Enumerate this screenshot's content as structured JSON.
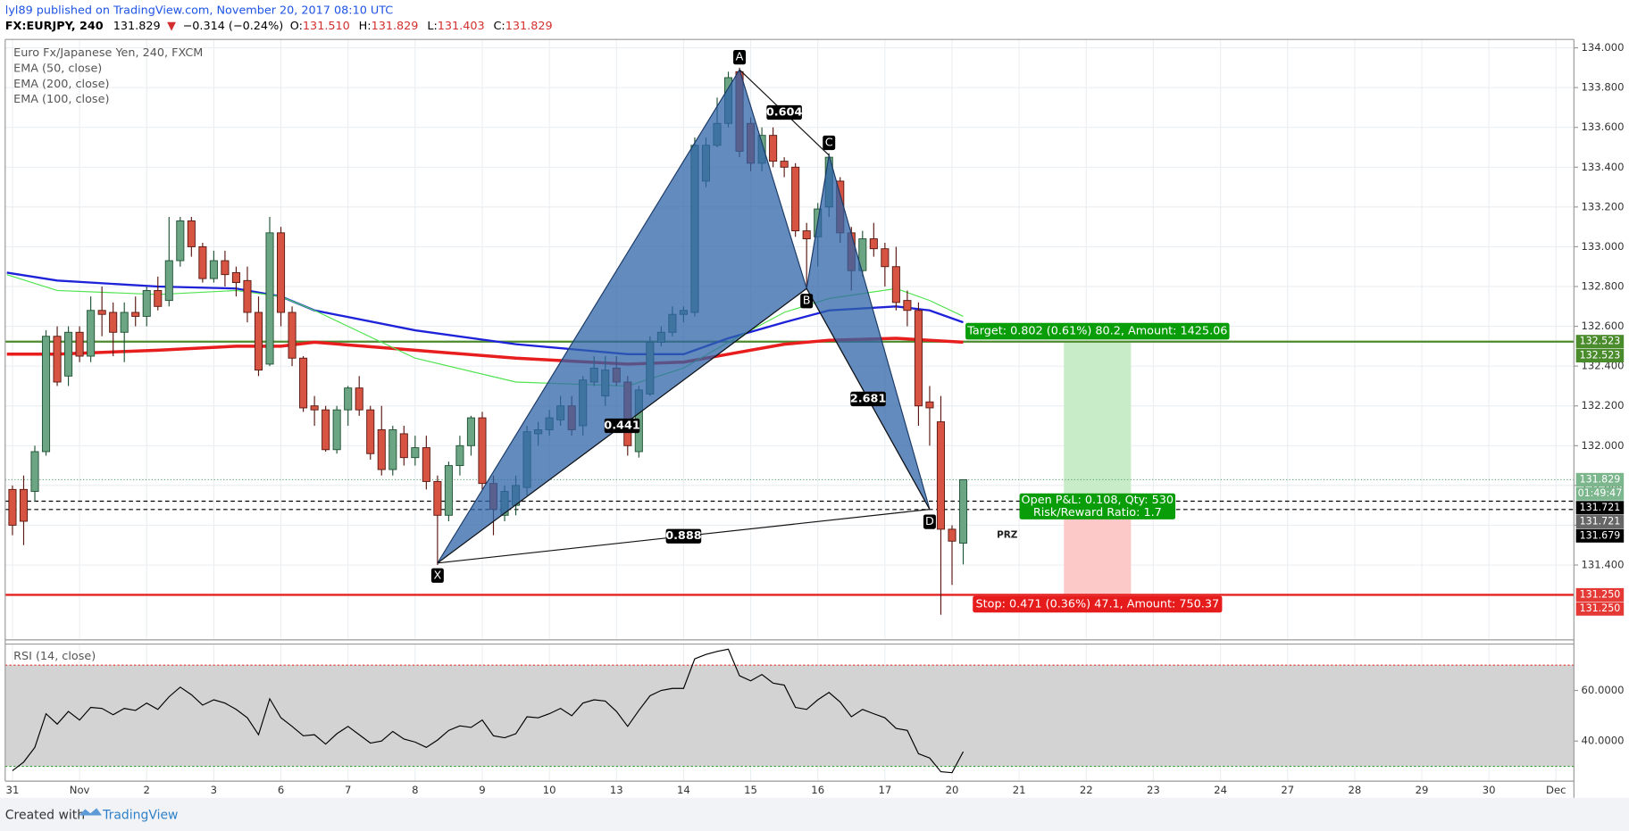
{
  "header": {
    "published": "lyl89 published on TradingView.com, November 20, 2017 08:10 UTC",
    "symbol": "FX:EURJPY, 240",
    "last": "131.829",
    "arrow": "▼",
    "change": "−0.314 (−0.24%)",
    "ohlc": [
      {
        "label": "O:",
        "value": "131.510"
      },
      {
        "label": "H:",
        "value": "131.829"
      },
      {
        "label": "L:",
        "value": "131.403"
      },
      {
        "label": "C:",
        "value": "131.829"
      }
    ]
  },
  "chart_data": {
    "type": "candlestick",
    "title": "Euro Fx/Japanese Yen, 240, FXCM",
    "up_color": "#6ba583",
    "down_color": "#d75442",
    "up_border": "#225437",
    "down_border": "#5b1a13",
    "grid": true,
    "x": [
      0,
      1,
      2,
      3,
      4,
      5,
      6,
      7,
      8,
      9,
      10,
      11,
      12,
      13,
      14,
      15,
      16,
      17,
      18,
      19,
      20,
      21,
      22,
      23,
      24,
      25,
      26,
      27,
      28,
      29,
      30,
      31,
      32,
      33,
      34,
      35,
      36,
      37,
      38,
      39,
      40,
      41,
      42,
      43,
      44,
      45,
      46,
      47,
      48,
      49,
      50,
      51,
      52,
      53,
      54,
      55,
      56,
      57,
      58,
      59,
      60,
      61,
      62,
      63,
      64,
      65,
      66,
      67,
      68,
      69,
      70,
      71,
      72,
      73,
      74,
      75,
      76,
      77,
      78,
      79,
      80,
      81,
      82,
      83,
      84,
      85
    ],
    "open": [
      131.78,
      131.78,
      131.77,
      131.97,
      132.55,
      132.35,
      132.57,
      132.45,
      132.68,
      132.67,
      132.57,
      132.67,
      132.65,
      132.78,
      132.73,
      132.93,
      133.13,
      133.0,
      132.84,
      132.93,
      132.87,
      132.83,
      132.67,
      132.41,
      133.07,
      132.67,
      132.44,
      132.2,
      132.18,
      131.98,
      132.18,
      132.29,
      132.18,
      132.08,
      131.88,
      132.06,
      131.94,
      131.99,
      131.82,
      131.65,
      131.9,
      132.0,
      132.14,
      131.81,
      131.65,
      131.7,
      131.79,
      132.06,
      132.08,
      132.13,
      132.2,
      132.1,
      132.32,
      132.25,
      132.39,
      132.32,
      131.97,
      132.26,
      132.52,
      132.57,
      132.66,
      132.67,
      133.33,
      133.51,
      133.62,
      133.88,
      133.62,
      133.42,
      133.56,
      133.43,
      133.4,
      133.08,
      133.05,
      133.2,
      133.33,
      133.07,
      132.88,
      133.04,
      132.99,
      132.9,
      132.73,
      132.68,
      132.22,
      132.12,
      131.58,
      131.51
    ],
    "high": [
      131.8,
      131.85,
      132.0,
      132.58,
      132.6,
      132.6,
      132.6,
      132.75,
      132.8,
      132.72,
      132.72,
      132.75,
      132.8,
      132.85,
      133.15,
      133.15,
      133.15,
      133.02,
      132.98,
      132.98,
      132.9,
      132.9,
      132.75,
      133.15,
      133.1,
      132.7,
      132.45,
      132.25,
      132.2,
      132.2,
      132.3,
      132.35,
      132.2,
      132.2,
      132.1,
      132.1,
      132.05,
      132.05,
      131.85,
      131.92,
      132.05,
      132.15,
      132.17,
      131.85,
      131.8,
      131.85,
      132.1,
      132.12,
      132.18,
      132.25,
      132.25,
      132.35,
      132.45,
      132.45,
      132.45,
      132.35,
      132.3,
      132.55,
      132.6,
      132.7,
      132.7,
      133.55,
      133.55,
      133.75,
      133.88,
      133.9,
      133.65,
      133.6,
      133.6,
      133.45,
      133.42,
      133.12,
      133.22,
      133.47,
      133.35,
      133.1,
      133.08,
      133.12,
      133.02,
      133.0,
      132.78,
      132.72,
      132.3,
      132.25,
      131.6,
      131.829
    ],
    "low": [
      131.55,
      131.5,
      131.72,
      131.95,
      132.3,
      132.3,
      132.42,
      132.42,
      132.55,
      132.45,
      132.42,
      132.6,
      132.6,
      132.68,
      132.7,
      132.9,
      132.95,
      132.82,
      132.82,
      132.8,
      132.75,
      132.62,
      132.35,
      132.4,
      132.6,
      132.4,
      132.17,
      132.1,
      131.97,
      131.96,
      132.1,
      132.15,
      131.93,
      131.85,
      131.85,
      131.9,
      131.9,
      131.78,
      131.4,
      131.62,
      131.85,
      131.95,
      131.78,
      131.55,
      131.62,
      131.65,
      131.75,
      132.0,
      132.05,
      132.1,
      132.05,
      132.05,
      132.3,
      132.2,
      132.3,
      131.95,
      131.94,
      132.25,
      132.5,
      132.55,
      132.62,
      132.65,
      133.3,
      133.5,
      133.6,
      133.45,
      133.38,
      133.38,
      133.4,
      133.35,
      133.05,
      132.8,
      132.9,
      133.15,
      133.02,
      132.78,
      132.85,
      132.95,
      132.8,
      132.68,
      132.6,
      132.1,
      132.0,
      131.15,
      131.3,
      131.403
    ],
    "close": [
      131.6,
      131.62,
      131.97,
      132.55,
      132.32,
      132.57,
      132.45,
      132.68,
      132.66,
      132.57,
      132.67,
      132.65,
      132.78,
      132.7,
      132.93,
      133.13,
      133.0,
      132.84,
      132.93,
      132.86,
      132.82,
      132.67,
      132.38,
      133.07,
      132.67,
      132.44,
      132.19,
      132.18,
      131.98,
      132.18,
      132.29,
      132.18,
      131.96,
      131.88,
      132.08,
      131.94,
      131.99,
      131.82,
      131.65,
      131.9,
      132.0,
      132.14,
      131.81,
      131.68,
      131.77,
      131.8,
      132.07,
      132.08,
      132.14,
      132.2,
      132.08,
      132.33,
      132.39,
      132.38,
      132.32,
      132.0,
      132.28,
      132.52,
      132.57,
      132.66,
      132.68,
      133.51,
      133.51,
      133.62,
      133.85,
      133.48,
      133.42,
      133.56,
      133.43,
      133.4,
      133.08,
      133.04,
      133.19,
      133.45,
      133.07,
      132.88,
      133.04,
      132.99,
      132.9,
      132.72,
      132.68,
      132.2,
      132.19,
      131.58,
      131.52,
      131.829
    ],
    "series": [
      {
        "name": "EMA (50, close)",
        "color": "#1e22d8",
        "width": 2,
        "x": [
          -0.5,
          4,
          13,
          20,
          24,
          27,
          36,
          45,
          55,
          60,
          64,
          69,
          73,
          79,
          82,
          85
        ],
        "values": [
          132.87,
          132.83,
          132.8,
          132.79,
          132.75,
          132.68,
          132.58,
          132.51,
          132.46,
          132.46,
          132.54,
          132.62,
          132.68,
          132.7,
          132.68,
          132.62
        ]
      },
      {
        "name": "EMA (200, close)",
        "color": "#e81d1d",
        "width": 3,
        "x": [
          -0.5,
          4,
          13,
          20,
          24,
          27,
          36,
          45,
          55,
          60,
          64,
          69,
          73,
          79,
          82,
          85
        ],
        "values": [
          132.46,
          132.46,
          132.48,
          132.5,
          132.5,
          132.52,
          132.48,
          132.44,
          132.41,
          132.42,
          132.46,
          132.51,
          132.53,
          132.54,
          132.53,
          132.52
        ]
      },
      {
        "name": "EMA (100, close)",
        "color": "#4fe34f",
        "width": 1,
        "x": [
          -0.5,
          4,
          13,
          20,
          24,
          27,
          36,
          45,
          55,
          60,
          64,
          69,
          73,
          79,
          82,
          85
        ],
        "values": [
          132.86,
          132.78,
          132.76,
          132.78,
          132.75,
          132.68,
          132.44,
          132.32,
          132.3,
          132.39,
          132.52,
          132.67,
          132.74,
          132.79,
          132.73,
          132.65
        ]
      }
    ],
    "pattern": {
      "color": "#2f64a8",
      "points": [
        {
          "label": "X",
          "x": 38,
          "y": 131.41
        },
        {
          "label": "A",
          "x": 65,
          "y": 133.89
        },
        {
          "label": "B",
          "x": 71,
          "y": 132.79
        },
        {
          "label": "C",
          "x": 73,
          "y": 133.46
        },
        {
          "label": "D",
          "x": 82,
          "y": 131.68
        }
      ],
      "ratios": [
        "0.604",
        "0.441",
        "2.681",
        "0.888"
      ]
    },
    "hlines": [
      {
        "value": 132.523,
        "color": "#4d8a2e",
        "style": "solid"
      },
      {
        "value": 131.25,
        "color": "#e52222",
        "style": "solid"
      },
      {
        "value": 131.829,
        "color": "#58a876",
        "style": "dotted"
      },
      {
        "value": 131.721,
        "color": "#000000",
        "style": "dashed"
      },
      {
        "value": 131.679,
        "color": "#000000",
        "style": "dashed"
      }
    ],
    "position": {
      "x": [
        94,
        100
      ],
      "entry": 131.721,
      "target": 132.523,
      "stop": 131.25,
      "target_label": "Target: 0.802 (0.61%) 80.2, Amount: 1425.06",
      "pnl_label": "Open P&L: 0.108, Qty: 530",
      "rr_label": "Risk/Reward Ratio: 1.7",
      "stop_label": "Stop: 0.471 (0.36%) 47.1, Amount: 750.37"
    },
    "annotation": {
      "text": "PRZ",
      "x": 88,
      "y": 131.55
    },
    "price_tags": [
      {
        "value": 132.523,
        "label": "132.523",
        "color": "#4a8b2c"
      },
      {
        "value": 132.523,
        "label": "132.523",
        "color": "#4a8b2c"
      },
      {
        "value": 131.829,
        "label": "131.829",
        "color": "#7bb68c"
      },
      {
        "label": "01:49:47",
        "color": "#7bb68c"
      },
      {
        "value": 131.721,
        "label": "131.721",
        "color": "#000000"
      },
      {
        "value": 131.721,
        "label": "131.721",
        "color": "#666666"
      },
      {
        "value": 131.679,
        "label": "131.679",
        "color": "#000000"
      },
      {
        "value": 131.25,
        "label": "131.250",
        "color": "#e53935"
      },
      {
        "value": 131.25,
        "label": "131.250",
        "color": "#e53935"
      }
    ],
    "xlim": [
      -0.65,
      139.6
    ],
    "xticks": [
      {
        "value": 0,
        "label": "31"
      },
      {
        "value": 6,
        "label": "Nov"
      },
      {
        "value": 12,
        "label": "2"
      },
      {
        "value": 18,
        "label": "3"
      },
      {
        "value": 24,
        "label": "6"
      },
      {
        "value": 30,
        "label": "7"
      },
      {
        "value": 36,
        "label": "8"
      },
      {
        "value": 42,
        "label": "9"
      },
      {
        "value": 48,
        "label": "10"
      },
      {
        "value": 54,
        "label": "13"
      },
      {
        "value": 60,
        "label": "14"
      },
      {
        "value": 66,
        "label": "15"
      },
      {
        "value": 72,
        "label": "16"
      },
      {
        "value": 78,
        "label": "17"
      },
      {
        "value": 84,
        "label": "20"
      },
      {
        "value": 90,
        "label": "21"
      },
      {
        "value": 96,
        "label": "22"
      },
      {
        "value": 102,
        "label": "23"
      },
      {
        "value": 108,
        "label": "24"
      },
      {
        "value": 114,
        "label": "27"
      },
      {
        "value": 120,
        "label": "28"
      },
      {
        "value": 126,
        "label": "29"
      },
      {
        "value": 132,
        "label": "30"
      },
      {
        "value": 138,
        "label": "Dec"
      }
    ],
    "ylim": [
      131.029,
      134.042
    ],
    "yticks": [
      {
        "value": 134,
        "label": "134.000"
      },
      {
        "value": 133.8,
        "label": "133.800"
      },
      {
        "value": 133.6,
        "label": "133.600"
      },
      {
        "value": 133.4,
        "label": "133.400"
      },
      {
        "value": 133.2,
        "label": "133.200"
      },
      {
        "value": 133,
        "label": "133.000"
      },
      {
        "value": 132.8,
        "label": "132.800"
      },
      {
        "value": 132.6,
        "label": "132.600"
      },
      {
        "value": 132.4,
        "label": "132.400"
      },
      {
        "value": 132.2,
        "label": "132.200"
      },
      {
        "value": 132,
        "label": "132.000"
      },
      {
        "value": 131.8,
        "label": "131.800"
      },
      {
        "value": 131.6,
        "label": "131.600"
      },
      {
        "value": 131.4,
        "label": "131.400"
      }
    ],
    "rsi": {
      "title": "RSI (14, close)",
      "color": "#000000",
      "band": [
        30,
        70
      ],
      "ylim": [
        24.17,
        78.33
      ],
      "yticks": [
        {
          "value": 60,
          "label": "60.0000"
        },
        {
          "value": 40,
          "label": "40.0000"
        }
      ],
      "values": [
        28.3,
        31.7,
        37.5,
        50.8,
        46.7,
        51.7,
        48.3,
        53.3,
        52.9,
        50.4,
        52.9,
        52.1,
        55,
        52.5,
        57.5,
        61.3,
        58.3,
        54.2,
        56.3,
        55,
        52.5,
        49.2,
        42.5,
        56.7,
        49.2,
        45.8,
        42.1,
        42.5,
        38.8,
        42.9,
        45.8,
        42.5,
        39.2,
        40,
        43.8,
        40.8,
        39.6,
        37.5,
        40.4,
        44.2,
        46.0,
        45.4,
        48.3,
        42.1,
        41.3,
        42.9,
        49.6,
        49.2,
        50.8,
        52.9,
        50,
        55,
        56.3,
        55.8,
        51.7,
        45.8,
        52.1,
        57.9,
        60,
        60.8,
        60.8,
        72.5,
        74.2,
        75.4,
        76.3,
        65.8,
        63.8,
        66.3,
        62.9,
        62.1,
        53.3,
        52.5,
        56.3,
        59.2,
        55.4,
        49.6,
        52.5,
        50.8,
        49.2,
        45,
        44.2,
        35,
        33.3,
        27.9,
        27.5,
        35.8
      ]
    }
  },
  "footer": {
    "created_with": "Created with",
    "brand": "TradingView"
  }
}
